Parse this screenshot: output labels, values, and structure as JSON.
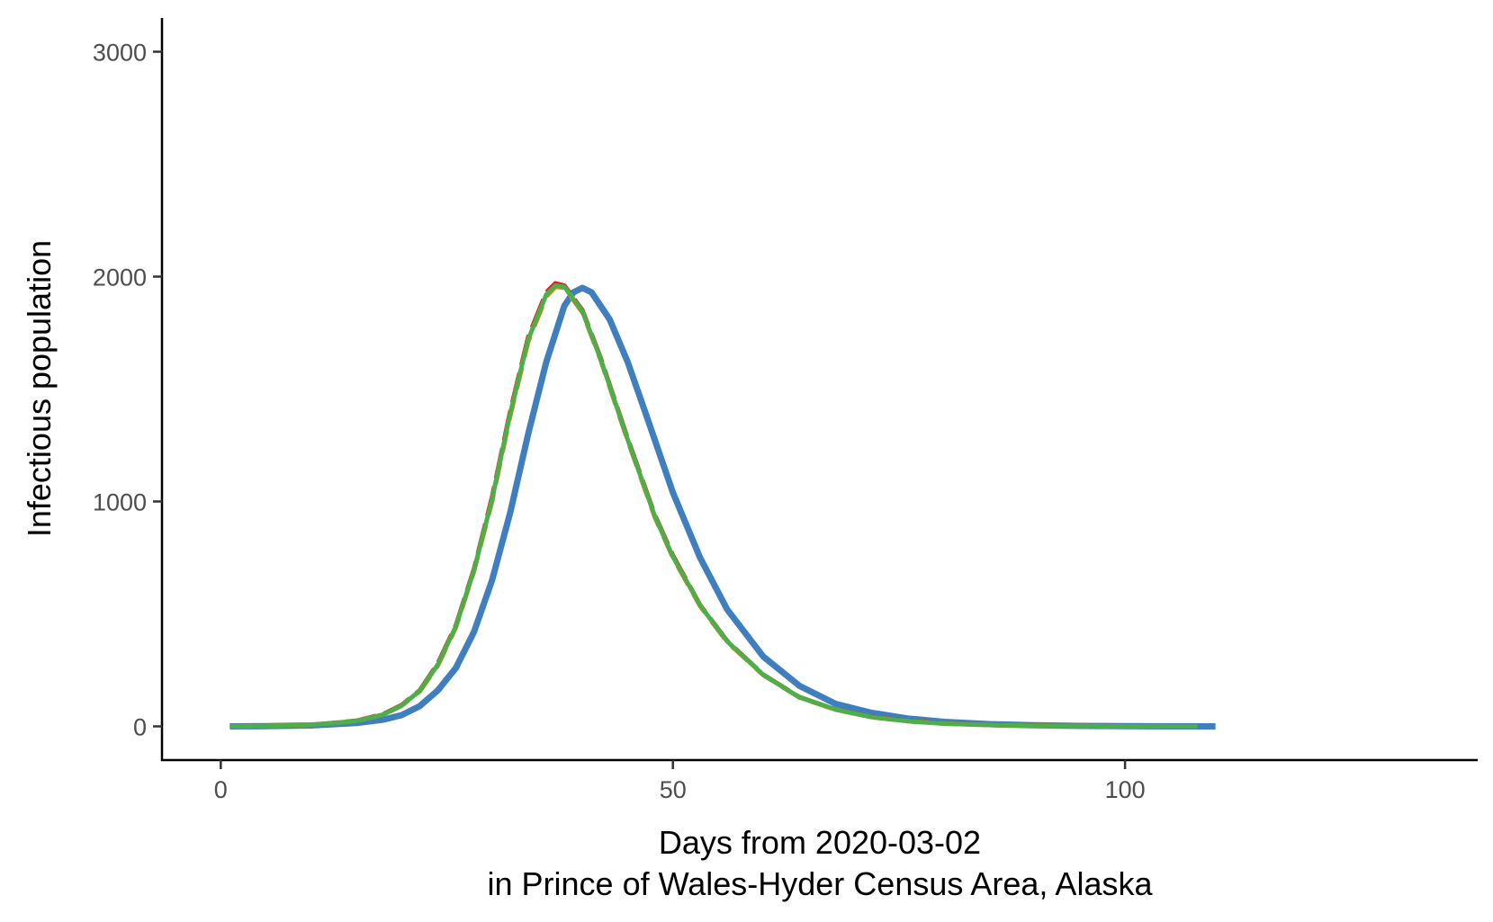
{
  "chart_data": {
    "type": "line",
    "xlabel_line1": "Days from 2020-03-02",
    "xlabel_line2": "in Prince of Wales-Hyder Census Area, Alaska",
    "ylabel": "Infectious population",
    "xlim": [
      -6.5,
      139
    ],
    "ylim": [
      -150,
      3150
    ],
    "x_ticks": [
      0,
      50,
      100
    ],
    "y_ticks": [
      0,
      1000,
      2000,
      3000
    ],
    "grid": false,
    "legend": "none",
    "series": [
      {
        "color": "#3f7fbf",
        "dash": "solid",
        "points": [
          [
            1,
            0
          ],
          [
            5,
            1
          ],
          [
            10,
            4
          ],
          [
            15,
            15
          ],
          [
            18,
            30
          ],
          [
            20,
            50
          ],
          [
            22,
            90
          ],
          [
            24,
            160
          ],
          [
            26,
            260
          ],
          [
            28,
            420
          ],
          [
            30,
            650
          ],
          [
            32,
            950
          ],
          [
            34,
            1300
          ],
          [
            36,
            1620
          ],
          [
            38,
            1870
          ],
          [
            39,
            1930
          ],
          [
            40,
            1950
          ],
          [
            41,
            1930
          ],
          [
            43,
            1810
          ],
          [
            45,
            1620
          ],
          [
            47,
            1390
          ],
          [
            50,
            1040
          ],
          [
            53,
            750
          ],
          [
            56,
            520
          ],
          [
            60,
            310
          ],
          [
            64,
            180
          ],
          [
            68,
            100
          ],
          [
            72,
            60
          ],
          [
            76,
            35
          ],
          [
            80,
            20
          ],
          [
            85,
            10
          ],
          [
            90,
            5
          ],
          [
            95,
            2
          ],
          [
            100,
            1
          ],
          [
            105,
            0
          ],
          [
            110,
            0
          ]
        ]
      },
      {
        "color": "#e41a1c",
        "dash": "long-dash",
        "points": [
          [
            1,
            0
          ],
          [
            5,
            2
          ],
          [
            10,
            6
          ],
          [
            15,
            25
          ],
          [
            18,
            55
          ],
          [
            20,
            95
          ],
          [
            22,
            160
          ],
          [
            24,
            280
          ],
          [
            26,
            450
          ],
          [
            28,
            700
          ],
          [
            30,
            1020
          ],
          [
            32,
            1400
          ],
          [
            34,
            1730
          ],
          [
            36,
            1930
          ],
          [
            37,
            1970
          ],
          [
            38,
            1960
          ],
          [
            40,
            1850
          ],
          [
            42,
            1640
          ],
          [
            45,
            1280
          ],
          [
            48,
            940
          ],
          [
            50,
            760
          ],
          [
            53,
            540
          ],
          [
            56,
            380
          ],
          [
            60,
            230
          ],
          [
            64,
            130
          ],
          [
            68,
            75
          ],
          [
            72,
            42
          ],
          [
            76,
            24
          ],
          [
            80,
            13
          ],
          [
            85,
            6
          ],
          [
            90,
            3
          ],
          [
            95,
            1
          ],
          [
            100,
            0
          ],
          [
            108,
            0
          ]
        ]
      },
      {
        "color": "#ff7f00",
        "dash": "dash",
        "points": [
          [
            1,
            0
          ],
          [
            5,
            2
          ],
          [
            10,
            6
          ],
          [
            15,
            24
          ],
          [
            18,
            52
          ],
          [
            20,
            92
          ],
          [
            22,
            155
          ],
          [
            24,
            270
          ],
          [
            26,
            440
          ],
          [
            28,
            690
          ],
          [
            30,
            1000
          ],
          [
            32,
            1380
          ],
          [
            34,
            1710
          ],
          [
            36,
            1910
          ],
          [
            37,
            1955
          ],
          [
            38,
            1950
          ],
          [
            40,
            1840
          ],
          [
            42,
            1630
          ],
          [
            45,
            1270
          ],
          [
            48,
            930
          ],
          [
            50,
            750
          ],
          [
            53,
            535
          ],
          [
            56,
            375
          ],
          [
            60,
            228
          ],
          [
            64,
            128
          ],
          [
            68,
            74
          ],
          [
            72,
            41
          ],
          [
            76,
            23
          ],
          [
            80,
            12
          ],
          [
            85,
            6
          ],
          [
            90,
            3
          ],
          [
            95,
            1
          ],
          [
            100,
            0
          ],
          [
            108,
            0
          ]
        ]
      },
      {
        "color": "#4daf4a",
        "dash": "solid",
        "points": [
          [
            1,
            0
          ],
          [
            5,
            2
          ],
          [
            10,
            6
          ],
          [
            15,
            24
          ],
          [
            18,
            53
          ],
          [
            20,
            93
          ],
          [
            22,
            158
          ],
          [
            24,
            275
          ],
          [
            26,
            445
          ],
          [
            28,
            695
          ],
          [
            30,
            1010
          ],
          [
            32,
            1390
          ],
          [
            34,
            1720
          ],
          [
            36,
            1920
          ],
          [
            37,
            1960
          ],
          [
            38,
            1955
          ],
          [
            40,
            1845
          ],
          [
            42,
            1635
          ],
          [
            45,
            1275
          ],
          [
            48,
            935
          ],
          [
            50,
            755
          ],
          [
            53,
            538
          ],
          [
            56,
            378
          ],
          [
            60,
            229
          ],
          [
            64,
            129
          ],
          [
            68,
            75
          ],
          [
            72,
            41
          ],
          [
            76,
            23
          ],
          [
            80,
            12
          ],
          [
            85,
            6
          ],
          [
            90,
            3
          ],
          [
            95,
            1
          ],
          [
            100,
            0
          ],
          [
            108,
            0
          ]
        ]
      }
    ]
  }
}
